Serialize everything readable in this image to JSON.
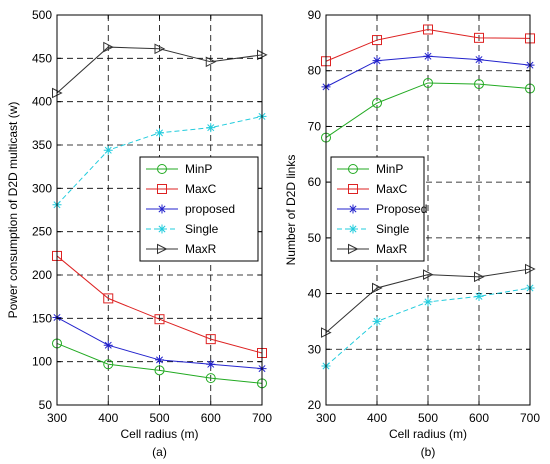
{
  "chart_data": [
    {
      "type": "line",
      "panel_label": "(a)",
      "xlabel": "Cell radius (m)",
      "ylabel": "Power consumption of D2D multicast (w)",
      "xlim": [
        300,
        700
      ],
      "ylim": [
        50,
        500
      ],
      "x_ticks": [
        "300",
        "400",
        "500",
        "600",
        "700"
      ],
      "y_ticks": [
        "50",
        "100",
        "150",
        "200",
        "250",
        "300",
        "350",
        "400",
        "450",
        "500"
      ],
      "x": [
        300,
        400,
        500,
        600,
        700
      ],
      "grid": "dashed",
      "legend_position": "center-right",
      "series": [
        {
          "name": "MinP",
          "color": "#22aa22",
          "marker": "circle",
          "dash": "solid",
          "values": [
            121,
            97,
            90,
            81,
            75
          ]
        },
        {
          "name": "MaxC",
          "color": "#dd2222",
          "marker": "square",
          "dash": "solid",
          "values": [
            222,
            173,
            149,
            126,
            110
          ]
        },
        {
          "name": "proposed",
          "color": "#2222cc",
          "marker": "star",
          "dash": "solid",
          "values": [
            151,
            119,
            102,
            97,
            92
          ]
        },
        {
          "name": "Single",
          "color": "#22ccdd",
          "marker": "star",
          "dash": "dashed",
          "values": [
            281,
            344,
            364,
            370,
            383
          ]
        },
        {
          "name": "MaxR",
          "color": "#333333",
          "marker": "triangle-right",
          "dash": "solid",
          "values": [
            410,
            463,
            461,
            446,
            454
          ]
        }
      ]
    },
    {
      "type": "line",
      "panel_label": "(b)",
      "xlabel": "Cell radius (m)",
      "ylabel": "Number of D2D links",
      "xlim": [
        300,
        700
      ],
      "ylim": [
        20,
        90
      ],
      "x_ticks": [
        "300",
        "400",
        "500",
        "600",
        "700"
      ],
      "y_ticks": [
        "20",
        "30",
        "40",
        "50",
        "60",
        "70",
        "80",
        "90"
      ],
      "x": [
        300,
        400,
        500,
        600,
        700
      ],
      "grid": "dashed",
      "legend_position": "center-right",
      "series": [
        {
          "name": "MinP",
          "color": "#22aa22",
          "marker": "circle",
          "dash": "solid",
          "values": [
            68,
            74.2,
            77.8,
            77.6,
            76.8
          ]
        },
        {
          "name": "MaxC",
          "color": "#dd2222",
          "marker": "square",
          "dash": "solid",
          "values": [
            81.7,
            85.5,
            87.4,
            85.9,
            85.8
          ]
        },
        {
          "name": "Proposed",
          "color": "#2222cc",
          "marker": "star",
          "dash": "solid",
          "values": [
            77.1,
            81.8,
            82.6,
            82.0,
            81.0
          ]
        },
        {
          "name": "Single",
          "color": "#22ccdd",
          "marker": "star",
          "dash": "dashed",
          "values": [
            27,
            35,
            38.5,
            39.5,
            41
          ]
        },
        {
          "name": "MaxR",
          "color": "#333333",
          "marker": "triangle-right",
          "dash": "solid",
          "values": [
            33,
            41,
            43.4,
            43.0,
            44.4
          ]
        }
      ]
    }
  ]
}
